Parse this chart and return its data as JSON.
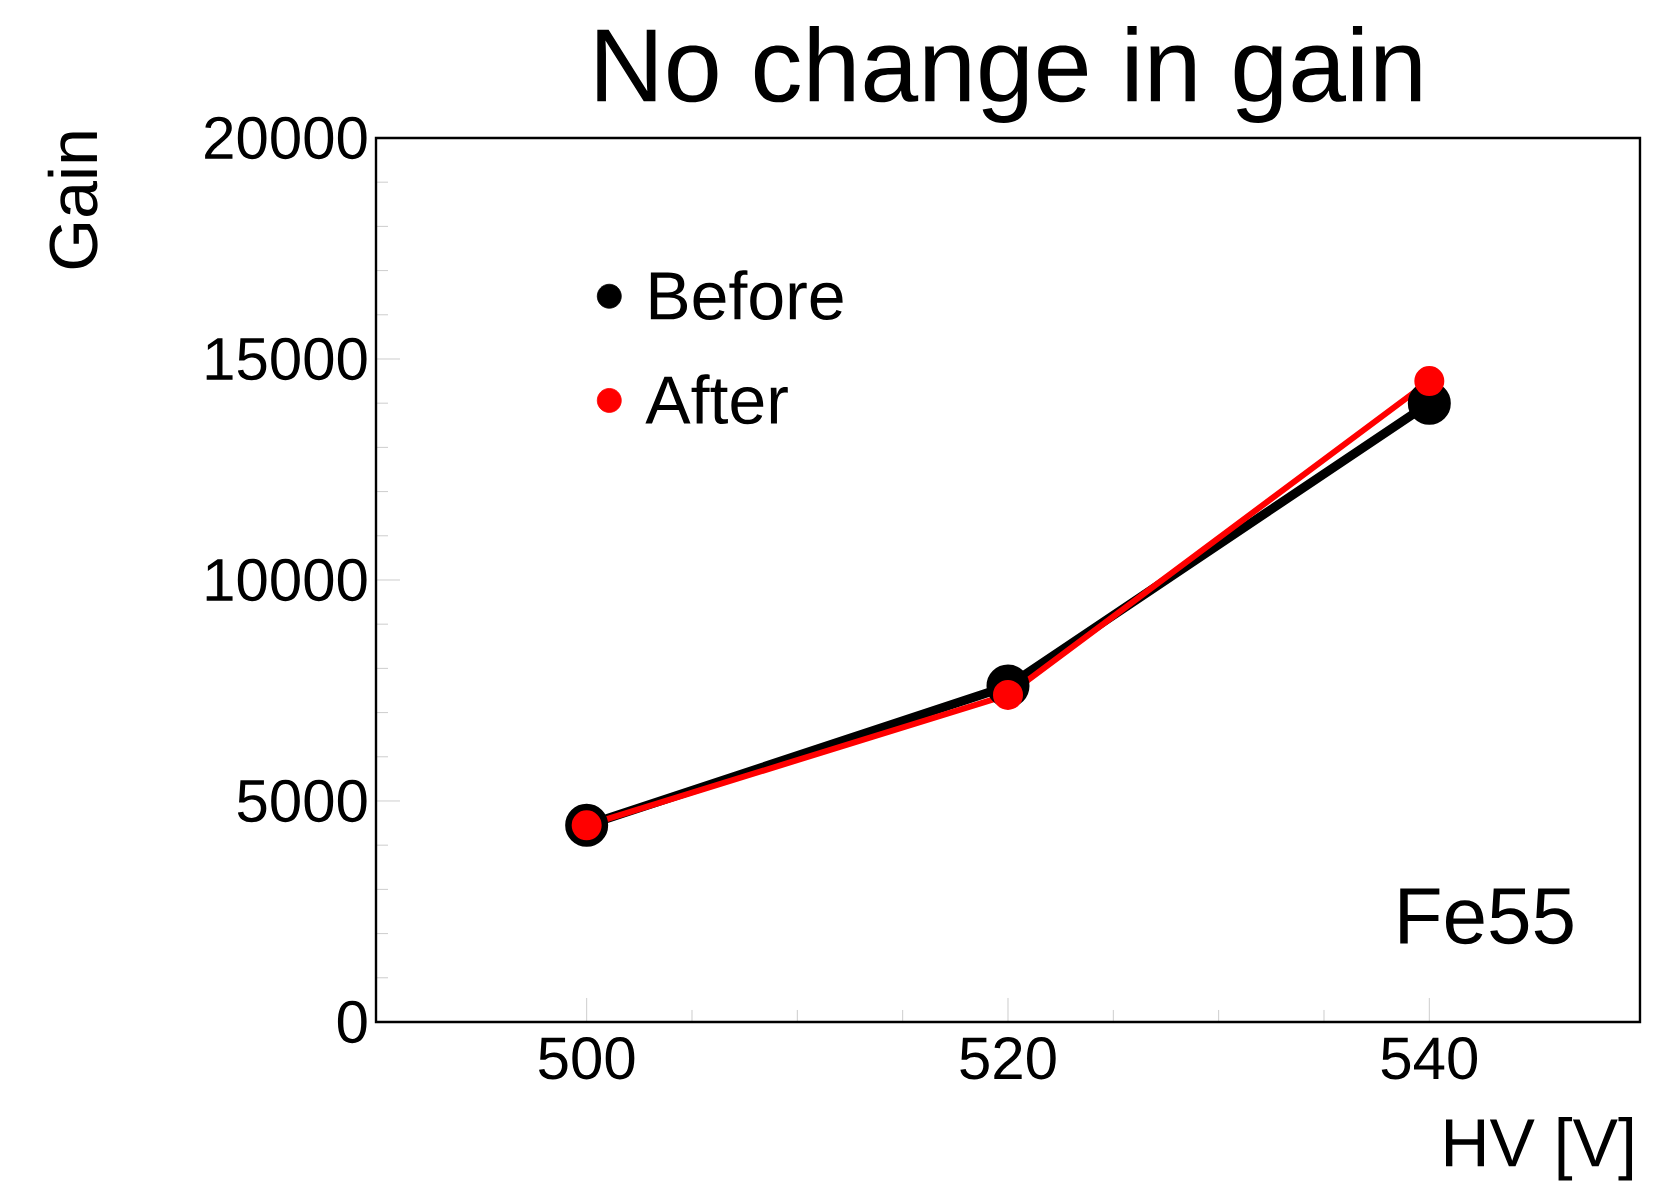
{
  "chart_data": {
    "type": "line",
    "title": "No change in gain",
    "xlabel": "HV [V]",
    "ylabel": "Gain",
    "x": [
      500,
      520,
      540
    ],
    "series": [
      {
        "name": "Before",
        "color": "#000000",
        "values": [
          4450,
          7600,
          14000
        ]
      },
      {
        "name": "After",
        "color": "#ff0000",
        "values": [
          4450,
          7400,
          14500
        ]
      }
    ],
    "xlim": [
      490,
      550
    ],
    "xticks": [
      500,
      520,
      540
    ],
    "ylim": [
      0,
      20000
    ],
    "yticks": [
      0,
      5000,
      10000,
      15000,
      20000
    ],
    "legend": "top left",
    "marker": "circle",
    "line_style": "solid",
    "grid": false,
    "annotations": [
      "Fe55"
    ]
  }
}
